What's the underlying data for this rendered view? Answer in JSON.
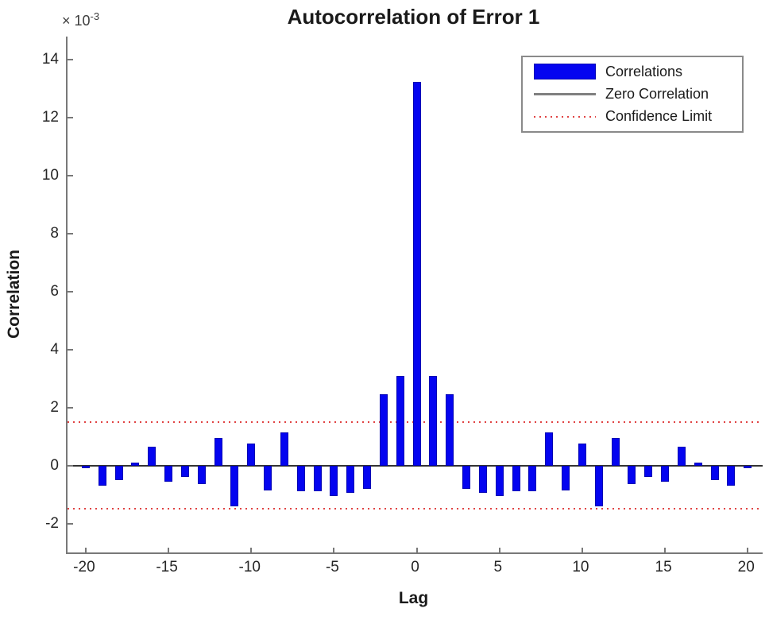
{
  "figure": {
    "title": "Autocorrelation of Error 1",
    "y_axis_multiplier_base": "× 10",
    "y_axis_multiplier_exponent": "-3"
  },
  "chart_data": {
    "type": "bar",
    "title": "Autocorrelation of Error 1",
    "xlabel": "Lag",
    "ylabel": "Correlation",
    "y_scale_label": "× 10^-3",
    "y_unit_multiplier": 0.001,
    "xlim": [
      -21.1,
      20.9
    ],
    "ylim": [
      -3.0,
      14.8
    ],
    "xticks": [
      -20,
      -15,
      -10,
      -5,
      0,
      5,
      10,
      15,
      20
    ],
    "yticks": [
      -2,
      0,
      2,
      4,
      6,
      8,
      10,
      12,
      14
    ],
    "grid": false,
    "zero_line": 0,
    "confidence_limits": [
      1.5,
      -1.5
    ],
    "legend": {
      "position": "top-right",
      "entries": [
        "Correlations",
        "Zero Correlation",
        "Confidence Limit"
      ]
    },
    "lags": [
      -20,
      -19,
      -18,
      -17,
      -16,
      -15,
      -14,
      -13,
      -12,
      -11,
      -10,
      -9,
      -8,
      -7,
      -6,
      -5,
      -4,
      -3,
      -2,
      -1,
      0,
      1,
      2,
      3,
      4,
      5,
      6,
      7,
      8,
      9,
      10,
      11,
      12,
      13,
      14,
      15,
      16,
      17,
      18,
      19,
      20
    ],
    "values_x1e3": [
      -0.1,
      -0.7,
      -0.5,
      0.1,
      0.65,
      -0.55,
      -0.4,
      -0.65,
      0.95,
      -1.4,
      0.75,
      -0.85,
      1.15,
      -0.9,
      -0.9,
      -1.05,
      -0.95,
      -0.8,
      2.45,
      3.1,
      13.25,
      3.1,
      2.45,
      -0.8,
      -0.95,
      -1.05,
      -0.9,
      -0.9,
      1.15,
      -0.85,
      0.75,
      -1.4,
      0.95,
      -0.65,
      -0.4,
      -0.55,
      0.65,
      0.1,
      -0.5,
      -0.7,
      -0.1
    ],
    "colors": {
      "bar_fill": "#0404f0",
      "bar_edge": "#0000b4",
      "zero_line": "#333333",
      "confidence_line": "#e04343",
      "axis": "#787878",
      "tick_text": "#262626",
      "legend_line_sample": "#808080"
    }
  }
}
